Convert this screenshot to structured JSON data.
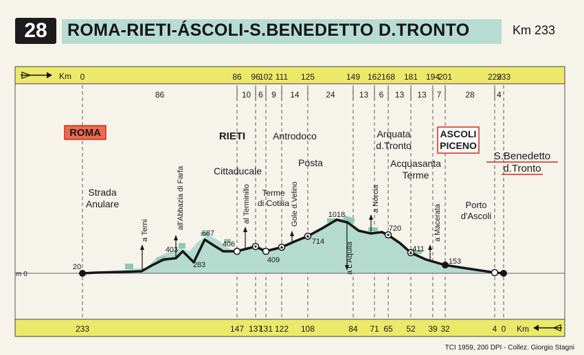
{
  "header": {
    "number": "28",
    "title": "ROMA-RIETI-ÁSCOLI-S.BENEDETTO D.TRONTO",
    "distance": "Km 233"
  },
  "credit": "TCI 1959, 200 DPI - Collez. Giorgio Stagni",
  "top_bar": {
    "km_label": "Km",
    "markers": [
      "0",
      "86",
      "96",
      "102",
      "111",
      "125",
      "149",
      "162",
      "168",
      "181",
      "194",
      "201",
      "229",
      "233"
    ]
  },
  "bottom_bar": {
    "km_label": "Km",
    "markers": [
      "233",
      "147",
      "137",
      "131",
      "122",
      "108",
      "84",
      "71",
      "65",
      "52",
      "39",
      "32",
      "4",
      "0"
    ]
  },
  "segments": [
    "86",
    "10",
    "6",
    "9",
    "14",
    "24",
    "13",
    "6",
    "13",
    "13",
    "7",
    "28",
    "4"
  ],
  "zero_label": "m 0",
  "towns": [
    {
      "id": "roma",
      "name": "ROMA",
      "style": "major-red"
    },
    {
      "id": "rieti",
      "name": "RIETI",
      "style": "major"
    },
    {
      "id": "ascoli",
      "name": "ASCOLI\nPICENO",
      "style": "major-boxed"
    },
    {
      "id": "sbenedetto",
      "name": "S.Benedetto\nd.Tronto",
      "style": "underlined"
    },
    {
      "id": "antrodoco",
      "name": "Antrodoco",
      "style": "plain"
    },
    {
      "id": "cittaducale",
      "name": "Cittaducale",
      "style": "plain"
    },
    {
      "id": "posta",
      "name": "Posta",
      "style": "plain"
    },
    {
      "id": "arquata",
      "name": "Arquata\nd.Tronto",
      "style": "plain"
    },
    {
      "id": "acquasanta",
      "name": "Acquasanta\nTerme",
      "style": "plain"
    },
    {
      "id": "anulare",
      "name": "Strada\nAnulare",
      "style": "plain"
    },
    {
      "id": "terme",
      "name": "Terme\ndi Cotilia",
      "style": "plain"
    },
    {
      "id": "porto",
      "name": "Porto\nd'Ascoli",
      "style": "plain"
    }
  ],
  "branches": [
    {
      "id": "terni",
      "label": "a Terni"
    },
    {
      "id": "farfa",
      "label": "all'Abbazia di Farfa"
    },
    {
      "id": "terminillo",
      "label": "al Terminillo"
    },
    {
      "id": "velino",
      "label": "Gole d.Velino"
    },
    {
      "id": "aquila",
      "label": "a L'Aquila"
    },
    {
      "id": "norcia",
      "label": "a Nórcia"
    },
    {
      "id": "macerata",
      "label": "a Macerata"
    }
  ],
  "altitudes": [
    "20",
    "403",
    "283",
    "687",
    "406",
    "409",
    "714",
    "1018",
    "720",
    "411",
    "153"
  ],
  "colors": {
    "bar": "#ece86a",
    "terrain": "#b4dbcd",
    "road": "#151515",
    "red": "#d9261c",
    "header_band": "#b7dcd1"
  }
}
